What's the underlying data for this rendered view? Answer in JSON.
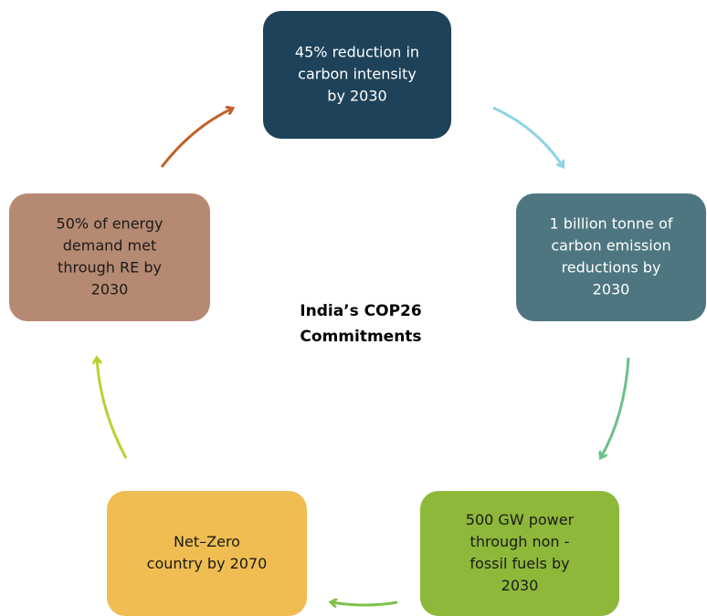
{
  "title": [
    "India’s COP26",
    "Commitments"
  ],
  "nodes": [
    {
      "lines": [
        "45% reduction in",
        "carbon intensity",
        "by 2030"
      ]
    },
    {
      "lines": [
        "1 billion tonne of",
        "carbon emission",
        "reductions by",
        "2030"
      ]
    },
    {
      "lines": [
        "500 GW power",
        "through non -",
        "fossil fuels by",
        "2030"
      ]
    },
    {
      "lines": [
        "Net–Zero",
        "country by 2070"
      ]
    },
    {
      "lines": [
        "50% of energy",
        "demand met",
        "through RE by",
        "2030"
      ]
    }
  ]
}
